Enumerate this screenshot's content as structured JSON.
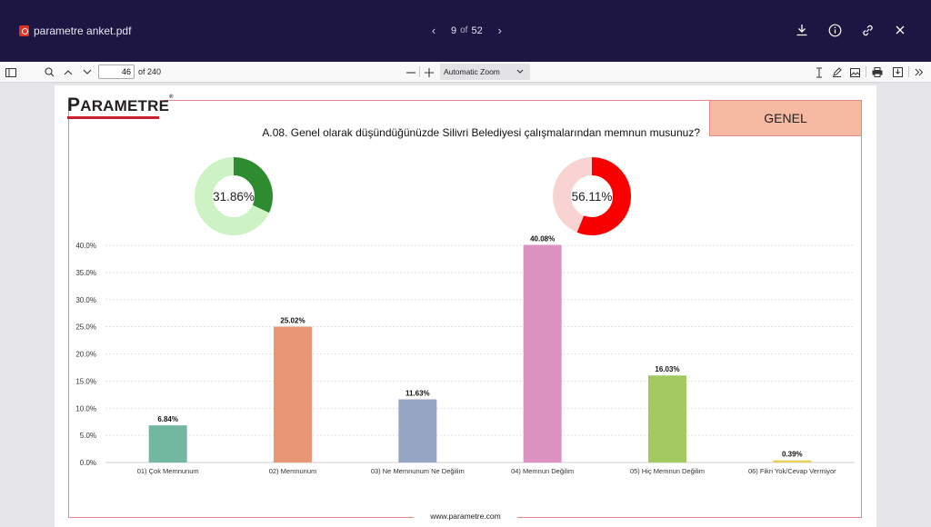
{
  "viewer": {
    "file_name": "parametre anket.pdf",
    "current_page": "9",
    "of_label": "of",
    "total_pages": "52"
  },
  "toolbar": {
    "page_number": "46",
    "of_total": "of 240",
    "zoom": "Automatic Zoom"
  },
  "document": {
    "brand_first": "P",
    "brand_rest": "ARAMETRE",
    "brand_reg": "®",
    "section": "GENEL",
    "question": "A.08. Genel olarak düşündüğünüzde Silivri Belediyesi çalışmalarından memnun musunuz?",
    "footer": "www.parametre.com",
    "donuts": [
      {
        "label": "31.86%",
        "value": 31.86,
        "color": "#2e8b30",
        "track": "#cdf2c4"
      },
      {
        "label": "56.11%",
        "value": 56.11,
        "color": "#f90000",
        "track": "#f9d2d2"
      }
    ]
  },
  "colors": {
    "accent_red": "#c8202f",
    "frame": "#e3898a",
    "header_bg": "#1e1642"
  },
  "icons": {
    "sidebar": "sidebar-toggle-icon",
    "search": "search-icon",
    "prev": "chevron-up-icon",
    "next": "chevron-down-icon",
    "download": "download-icon",
    "info": "info-icon",
    "link": "link-icon",
    "close": "close-icon"
  },
  "chart_data": {
    "type": "bar",
    "categories": [
      "01) Çok Memnunum",
      "02) Memnunum",
      "03) Ne Memnunum Ne Değilim",
      "04) Memnun Değilim",
      "05) Hiç Memnun Değilim",
      "06) Fikri Yok/Cevap Vermiyor"
    ],
    "values": [
      6.84,
      25.02,
      11.63,
      40.08,
      16.03,
      0.39
    ],
    "value_labels": [
      "6.84%",
      "25.02%",
      "11.63%",
      "40.08%",
      "16.03%",
      "0.39%"
    ],
    "colors": [
      "#72b8a1",
      "#e99674",
      "#97a5c5",
      "#dc93c2",
      "#a3c963",
      "#e8cf56"
    ],
    "yticks": [
      "0.0%",
      "5.0%",
      "10.0%",
      "15.0%",
      "20.0%",
      "25.0%",
      "30.0%",
      "35.0%",
      "40.0%"
    ],
    "ylim": [
      0,
      40
    ],
    "grid": true,
    "xlabel": "",
    "ylabel": ""
  }
}
